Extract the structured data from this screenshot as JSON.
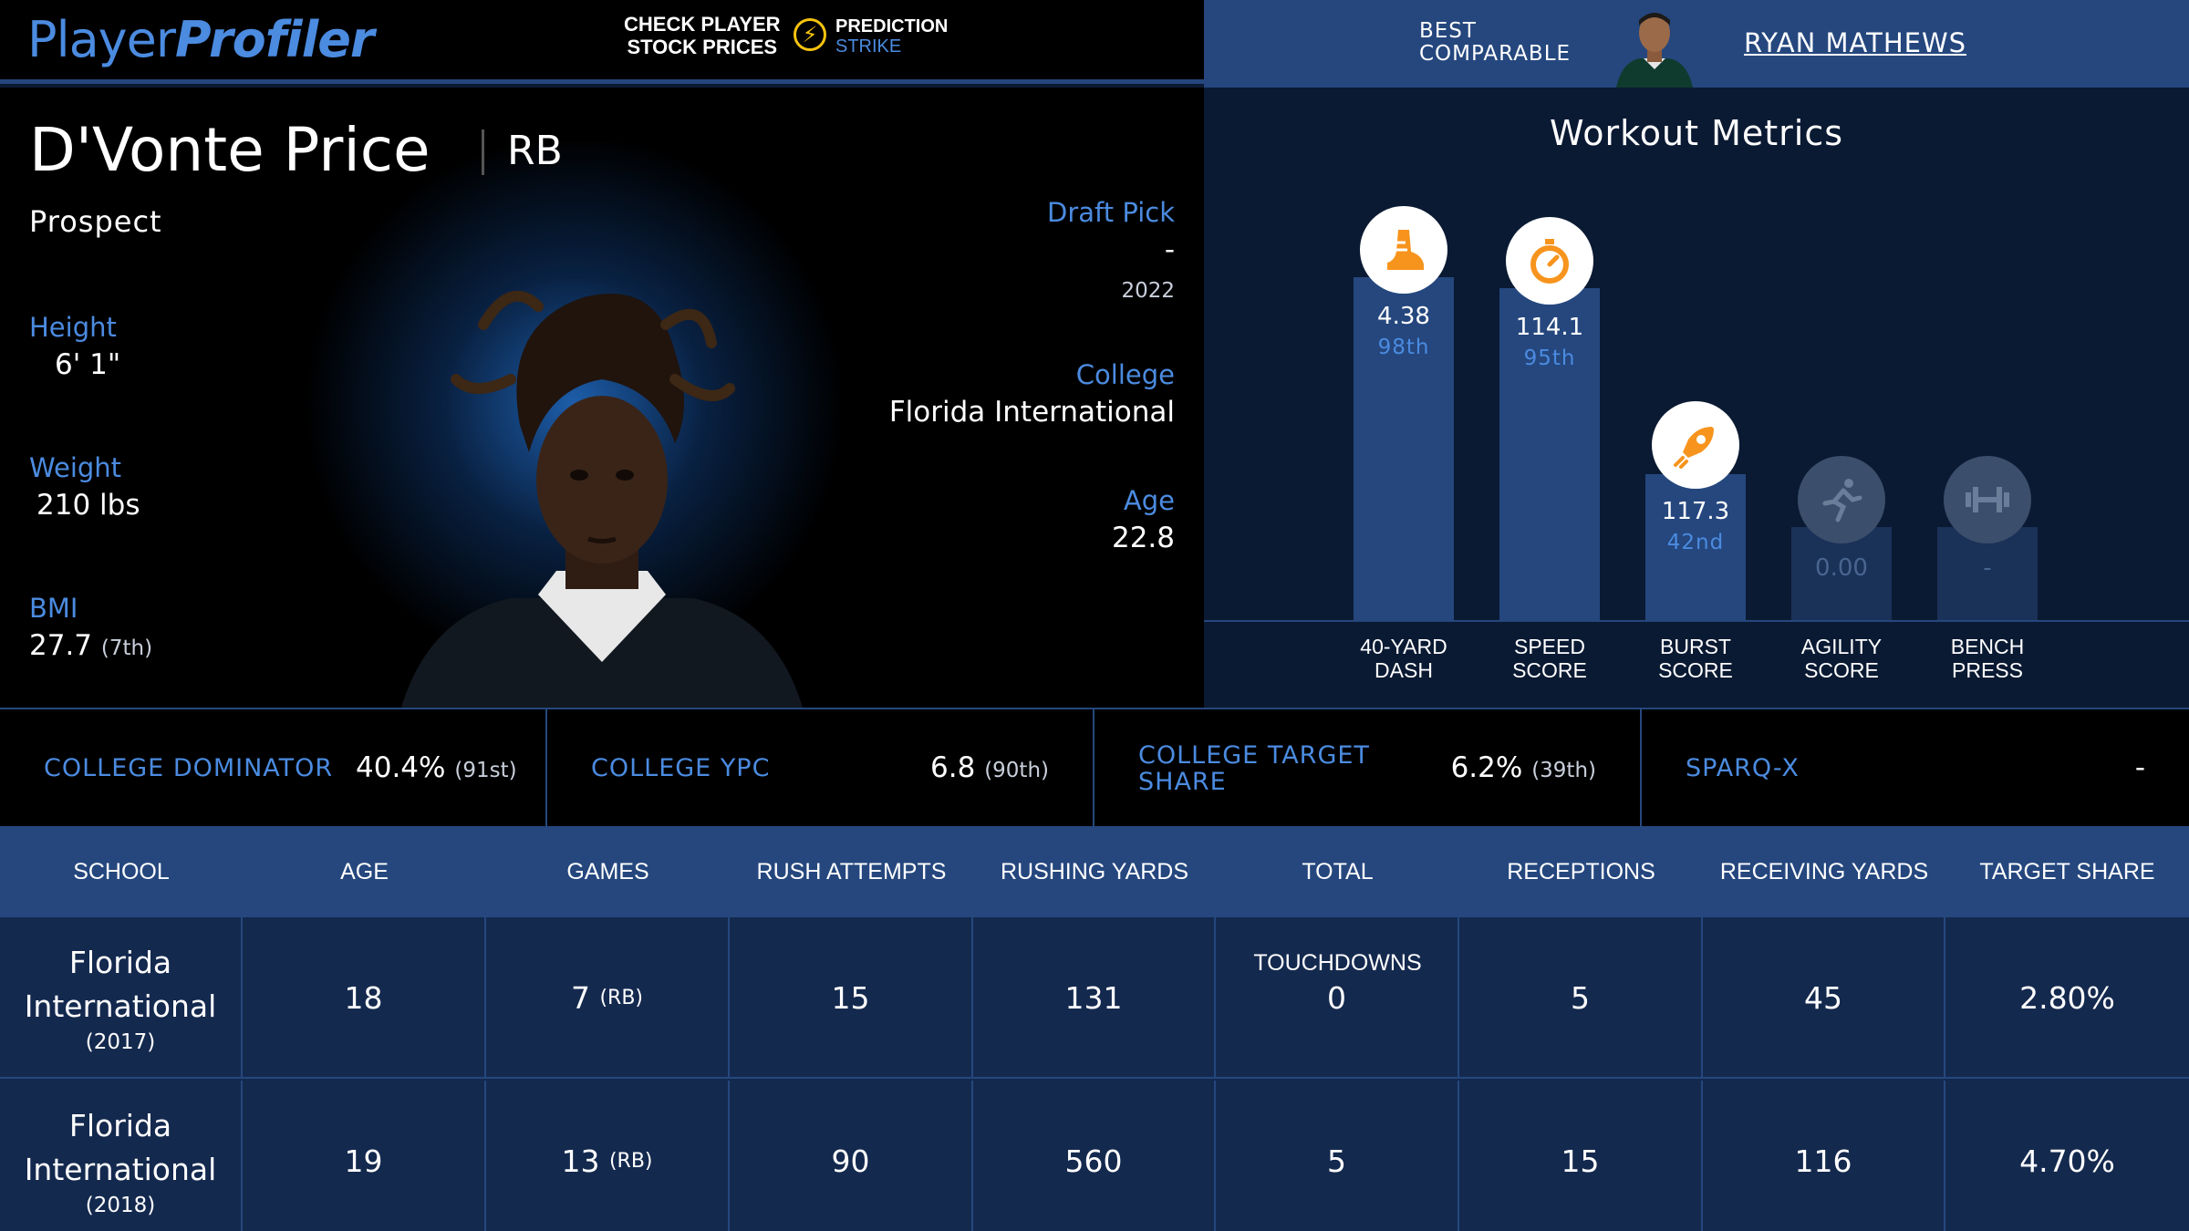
{
  "header": {
    "logo_light": "Player",
    "logo_bold": "Profiler",
    "promo_line1": "CHECK PLAYER",
    "promo_line2": "STOCK PRICES",
    "sponsor_line1": "PREDICTION",
    "sponsor_line2": "STRIKE",
    "best_line1": "BEST",
    "best_line2": "COMPARABLE",
    "comparable_name": "RYAN MATHEWS"
  },
  "player": {
    "name": "D'Vonte Price",
    "position": "RB",
    "status": "Prospect",
    "height_label": "Height",
    "height": "6' 1\"",
    "weight_label": "Weight",
    "weight": "210 lbs",
    "bmi_label": "BMI",
    "bmi": "27.7",
    "bmi_rank": "(7th)",
    "draft_label": "Draft Pick",
    "draft_pick": "-",
    "draft_year": "2022",
    "college_label": "College",
    "college": "Florida International",
    "age_label": "Age",
    "age": "22.8"
  },
  "workout": {
    "title": "Workout Metrics",
    "metrics": [
      {
        "label1": "40-YARD",
        "label2": "DASH",
        "value": "4.38",
        "percentile": "98th",
        "score": 0.98,
        "icon": "shoe-icon"
      },
      {
        "label1": "SPEED",
        "label2": "SCORE",
        "value": "114.1",
        "percentile": "95th",
        "score": 0.95,
        "icon": "stopwatch-icon"
      },
      {
        "label1": "BURST",
        "label2": "SCORE",
        "value": "117.3",
        "percentile": "42nd",
        "score": 0.42,
        "icon": "rocket-icon"
      },
      {
        "label1": "AGILITY",
        "label2": "SCORE",
        "value": "0.00",
        "percentile": "",
        "score": 0.27,
        "icon": "runner-icon"
      },
      {
        "label1": "BENCH",
        "label2": "PRESS",
        "value": "-",
        "percentile": "",
        "score": 0.27,
        "icon": "dumbbell-icon"
      }
    ]
  },
  "stats": [
    {
      "label": "COLLEGE DOMINATOR",
      "value": "40.4%",
      "rank": "(91st)"
    },
    {
      "label": "COLLEGE YPC",
      "value": "6.8",
      "rank": "(90th)"
    },
    {
      "label": "COLLEGE TARGET SHARE",
      "value": "6.2%",
      "rank": "(39th)"
    },
    {
      "label": "SPARQ-X",
      "value": "-",
      "rank": ""
    }
  ],
  "table": {
    "headers": [
      "SCHOOL",
      "AGE",
      "GAMES",
      "RUSH ATTEMPTS",
      "RUSHING YARDS",
      "TOTAL TOUCHDOWNS",
      "RECEPTIONS",
      "RECEIVING YARDS",
      "TARGET SHARE"
    ],
    "rows": [
      {
        "school1": "Florida",
        "school2": "International",
        "year": "(2017)",
        "age": "18",
        "games": "7",
        "games_pos": "(RB)",
        "rush_att": "15",
        "rush_yds": "131",
        "tds": "0",
        "rec": "5",
        "rec_yds": "45",
        "tgt_share": "2.80%"
      },
      {
        "school1": "Florida",
        "school2": "International",
        "year": "(2018)",
        "age": "19",
        "games": "13",
        "games_pos": "(RB)",
        "rush_att": "90",
        "rush_yds": "560",
        "tds": "5",
        "rec": "15",
        "rec_yds": "116",
        "tgt_share": "4.70%"
      }
    ]
  },
  "colors": {
    "accent": "#4b8be0",
    "panel": "#25477e",
    "background": "#0b1a33",
    "icon_orange": "#f7941d"
  }
}
